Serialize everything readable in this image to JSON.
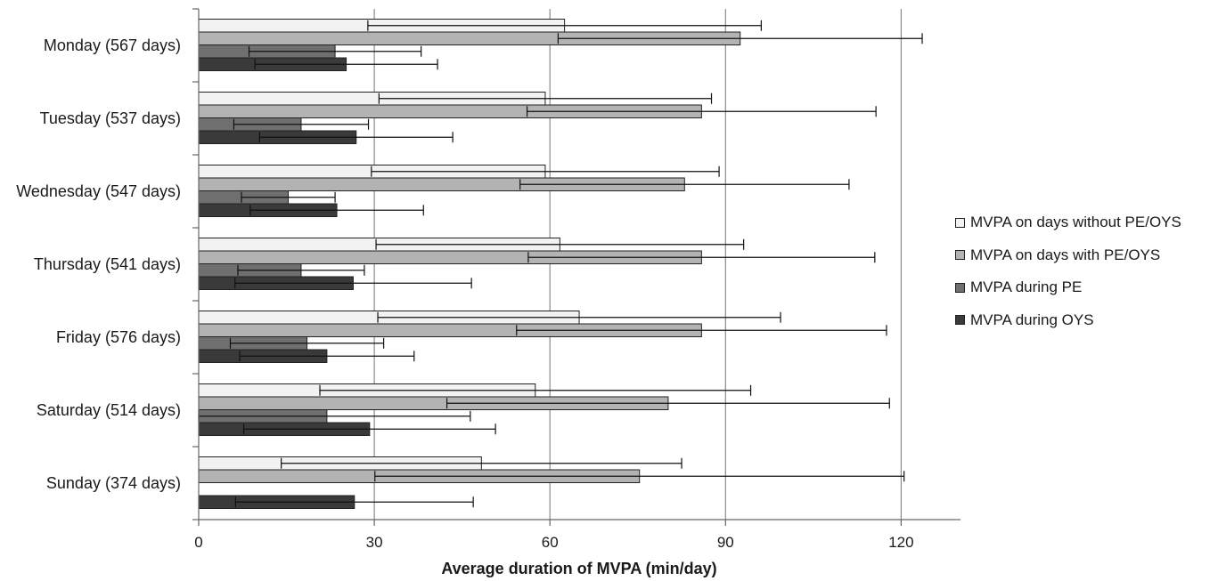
{
  "chart_data": {
    "type": "bar",
    "orientation": "horizontal",
    "categories": [
      "Monday (567 days)",
      "Tuesday (537 days)",
      "Wednesday (547 days)",
      "Thursday (541 days)",
      "Friday (576 days)",
      "Saturday (514 days)",
      "Sunday (374 days)"
    ],
    "series": [
      {
        "name": "MVPA on days without PE/OYS",
        "color": "#f2f2f2",
        "values": [
          62.5,
          59.2,
          59.2,
          61.7,
          65.0,
          57.5,
          48.3
        ],
        "error": [
          33.6,
          28.4,
          29.7,
          31.4,
          34.4,
          36.8,
          34.2
        ]
      },
      {
        "name": "MVPA on days with PE/OYS",
        "color": "#b3b3b3",
        "values": [
          92.5,
          85.9,
          83.0,
          85.9,
          85.9,
          80.2,
          75.3
        ],
        "error": [
          31.1,
          29.8,
          28.1,
          29.6,
          31.6,
          37.8,
          45.2
        ]
      },
      {
        "name": "MVPA during PE",
        "color": "#6f6f6f",
        "values": [
          23.3,
          17.5,
          15.3,
          17.5,
          18.5,
          21.9,
          null
        ],
        "error": [
          14.7,
          11.5,
          8.0,
          10.8,
          13.1,
          24.5,
          null
        ]
      },
      {
        "name": "MVPA during OYS",
        "color": "#3a3a3a",
        "values": [
          25.2,
          26.9,
          23.6,
          26.4,
          21.9,
          29.2,
          26.6
        ],
        "error": [
          15.6,
          16.5,
          14.8,
          20.2,
          14.9,
          21.5,
          20.3
        ]
      }
    ],
    "xlabel": "Average duration of MVPA (min/day)",
    "ylabel": "",
    "xlim": [
      0,
      130
    ],
    "xticks": [
      0,
      30,
      60,
      90,
      120
    ],
    "grid": "vertical",
    "legend_position": "right"
  }
}
